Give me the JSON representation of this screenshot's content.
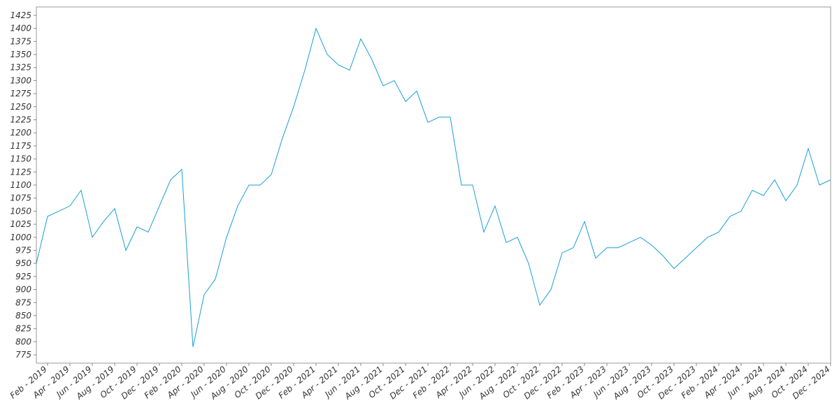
{
  "chart_data": {
    "type": "line",
    "x": [
      "2019-01",
      "2019-02",
      "2019-03",
      "2019-04",
      "2019-05",
      "2019-06",
      "2019-07",
      "2019-08",
      "2019-09",
      "2019-10",
      "2019-11",
      "2019-12",
      "2020-01",
      "2020-02",
      "2020-03",
      "2020-04",
      "2020-05",
      "2020-06",
      "2020-07",
      "2020-08",
      "2020-09",
      "2020-10",
      "2020-11",
      "2020-12",
      "2021-01",
      "2021-02",
      "2021-03",
      "2021-04",
      "2021-05",
      "2021-06",
      "2021-07",
      "2021-08",
      "2021-09",
      "2021-10",
      "2021-11",
      "2021-12",
      "2022-01",
      "2022-02",
      "2022-03",
      "2022-04",
      "2022-05",
      "2022-06",
      "2022-07",
      "2022-08",
      "2022-09",
      "2022-10",
      "2022-11",
      "2022-12",
      "2023-01",
      "2023-02",
      "2023-03",
      "2023-04",
      "2023-05",
      "2023-06",
      "2023-07",
      "2023-08",
      "2023-09",
      "2023-10",
      "2023-11",
      "2023-12",
      "2024-01",
      "2024-02",
      "2024-03",
      "2024-04",
      "2024-05",
      "2024-06",
      "2024-07",
      "2024-08",
      "2024-09",
      "2024-10",
      "2024-11",
      "2024-12"
    ],
    "series": [
      {
        "color": "#1a9fd6",
        "values": [
          950,
          1040,
          1050,
          1060,
          1090,
          1000,
          1030,
          1055,
          975,
          1020,
          1010,
          1060,
          1110,
          1130,
          790,
          890,
          920,
          1000,
          1060,
          1100,
          1100,
          1120,
          1190,
          1250,
          1320,
          1400,
          1350,
          1330,
          1320,
          1380,
          1340,
          1290,
          1300,
          1260,
          1280,
          1220,
          1230,
          1230,
          1100,
          1100,
          1010,
          1060,
          990,
          1000,
          950,
          870,
          900,
          970,
          980,
          1030,
          960,
          980,
          980,
          990,
          1000,
          985,
          965,
          940,
          960,
          980,
          1000,
          1010,
          1040,
          1050,
          1090,
          1080,
          1110,
          1070,
          1100,
          1170,
          1100,
          1110
        ]
      }
    ],
    "xlim": [
      "2019-01",
      "2024-12"
    ],
    "xticks": [
      {
        "value": "2019-02",
        "label": "Feb - 2019"
      },
      {
        "value": "2019-04",
        "label": "Apr - 2019"
      },
      {
        "value": "2019-06",
        "label": "Jun - 2019"
      },
      {
        "value": "2019-08",
        "label": "Aug - 2019"
      },
      {
        "value": "2019-10",
        "label": "Oct - 2019"
      },
      {
        "value": "2019-12",
        "label": "Dec - 2019"
      },
      {
        "value": "2020-02",
        "label": "Feb - 2020"
      },
      {
        "value": "2020-04",
        "label": "Apr - 2020"
      },
      {
        "value": "2020-06",
        "label": "Jun - 2020"
      },
      {
        "value": "2020-08",
        "label": "Aug - 2020"
      },
      {
        "value": "2020-10",
        "label": "Oct - 2020"
      },
      {
        "value": "2020-12",
        "label": "Dec - 2020"
      },
      {
        "value": "2021-02",
        "label": "Feb - 2021"
      },
      {
        "value": "2021-04",
        "label": "Apr - 2021"
      },
      {
        "value": "2021-06",
        "label": "Jun - 2021"
      },
      {
        "value": "2021-08",
        "label": "Aug - 2021"
      },
      {
        "value": "2021-10",
        "label": "Oct - 2021"
      },
      {
        "value": "2021-12",
        "label": "Dec - 2021"
      },
      {
        "value": "2022-02",
        "label": "Feb - 2022"
      },
      {
        "value": "2022-04",
        "label": "Apr - 2022"
      },
      {
        "value": "2022-06",
        "label": "Jun - 2022"
      },
      {
        "value": "2022-08",
        "label": "Aug - 2022"
      },
      {
        "value": "2022-10",
        "label": "Oct - 2022"
      },
      {
        "value": "2022-12",
        "label": "Dec - 2022"
      },
      {
        "value": "2023-02",
        "label": "Feb - 2023"
      },
      {
        "value": "2023-04",
        "label": "Apr - 2023"
      },
      {
        "value": "2023-06",
        "label": "Jun - 2023"
      },
      {
        "value": "2023-08",
        "label": "Aug - 2023"
      },
      {
        "value": "2023-10",
        "label": "Oct - 2023"
      },
      {
        "value": "2023-12",
        "label": "Dec - 2023"
      },
      {
        "value": "2024-02",
        "label": "Feb - 2024"
      },
      {
        "value": "2024-04",
        "label": "Apr - 2024"
      },
      {
        "value": "2024-06",
        "label": "Jun - 2024"
      },
      {
        "value": "2024-08",
        "label": "Aug - 2024"
      },
      {
        "value": "2024-10",
        "label": "Oct - 2024"
      },
      {
        "value": "2024-12",
        "label": "Dec - 2024"
      }
    ],
    "ylim": [
      759,
      1441
    ],
    "yticks": [
      775,
      800,
      825,
      850,
      875,
      900,
      925,
      950,
      975,
      1000,
      1025,
      1050,
      1075,
      1100,
      1125,
      1150,
      1175,
      1200,
      1225,
      1250,
      1275,
      1300,
      1325,
      1350,
      1375,
      1400,
      1425
    ],
    "grid": false
  }
}
